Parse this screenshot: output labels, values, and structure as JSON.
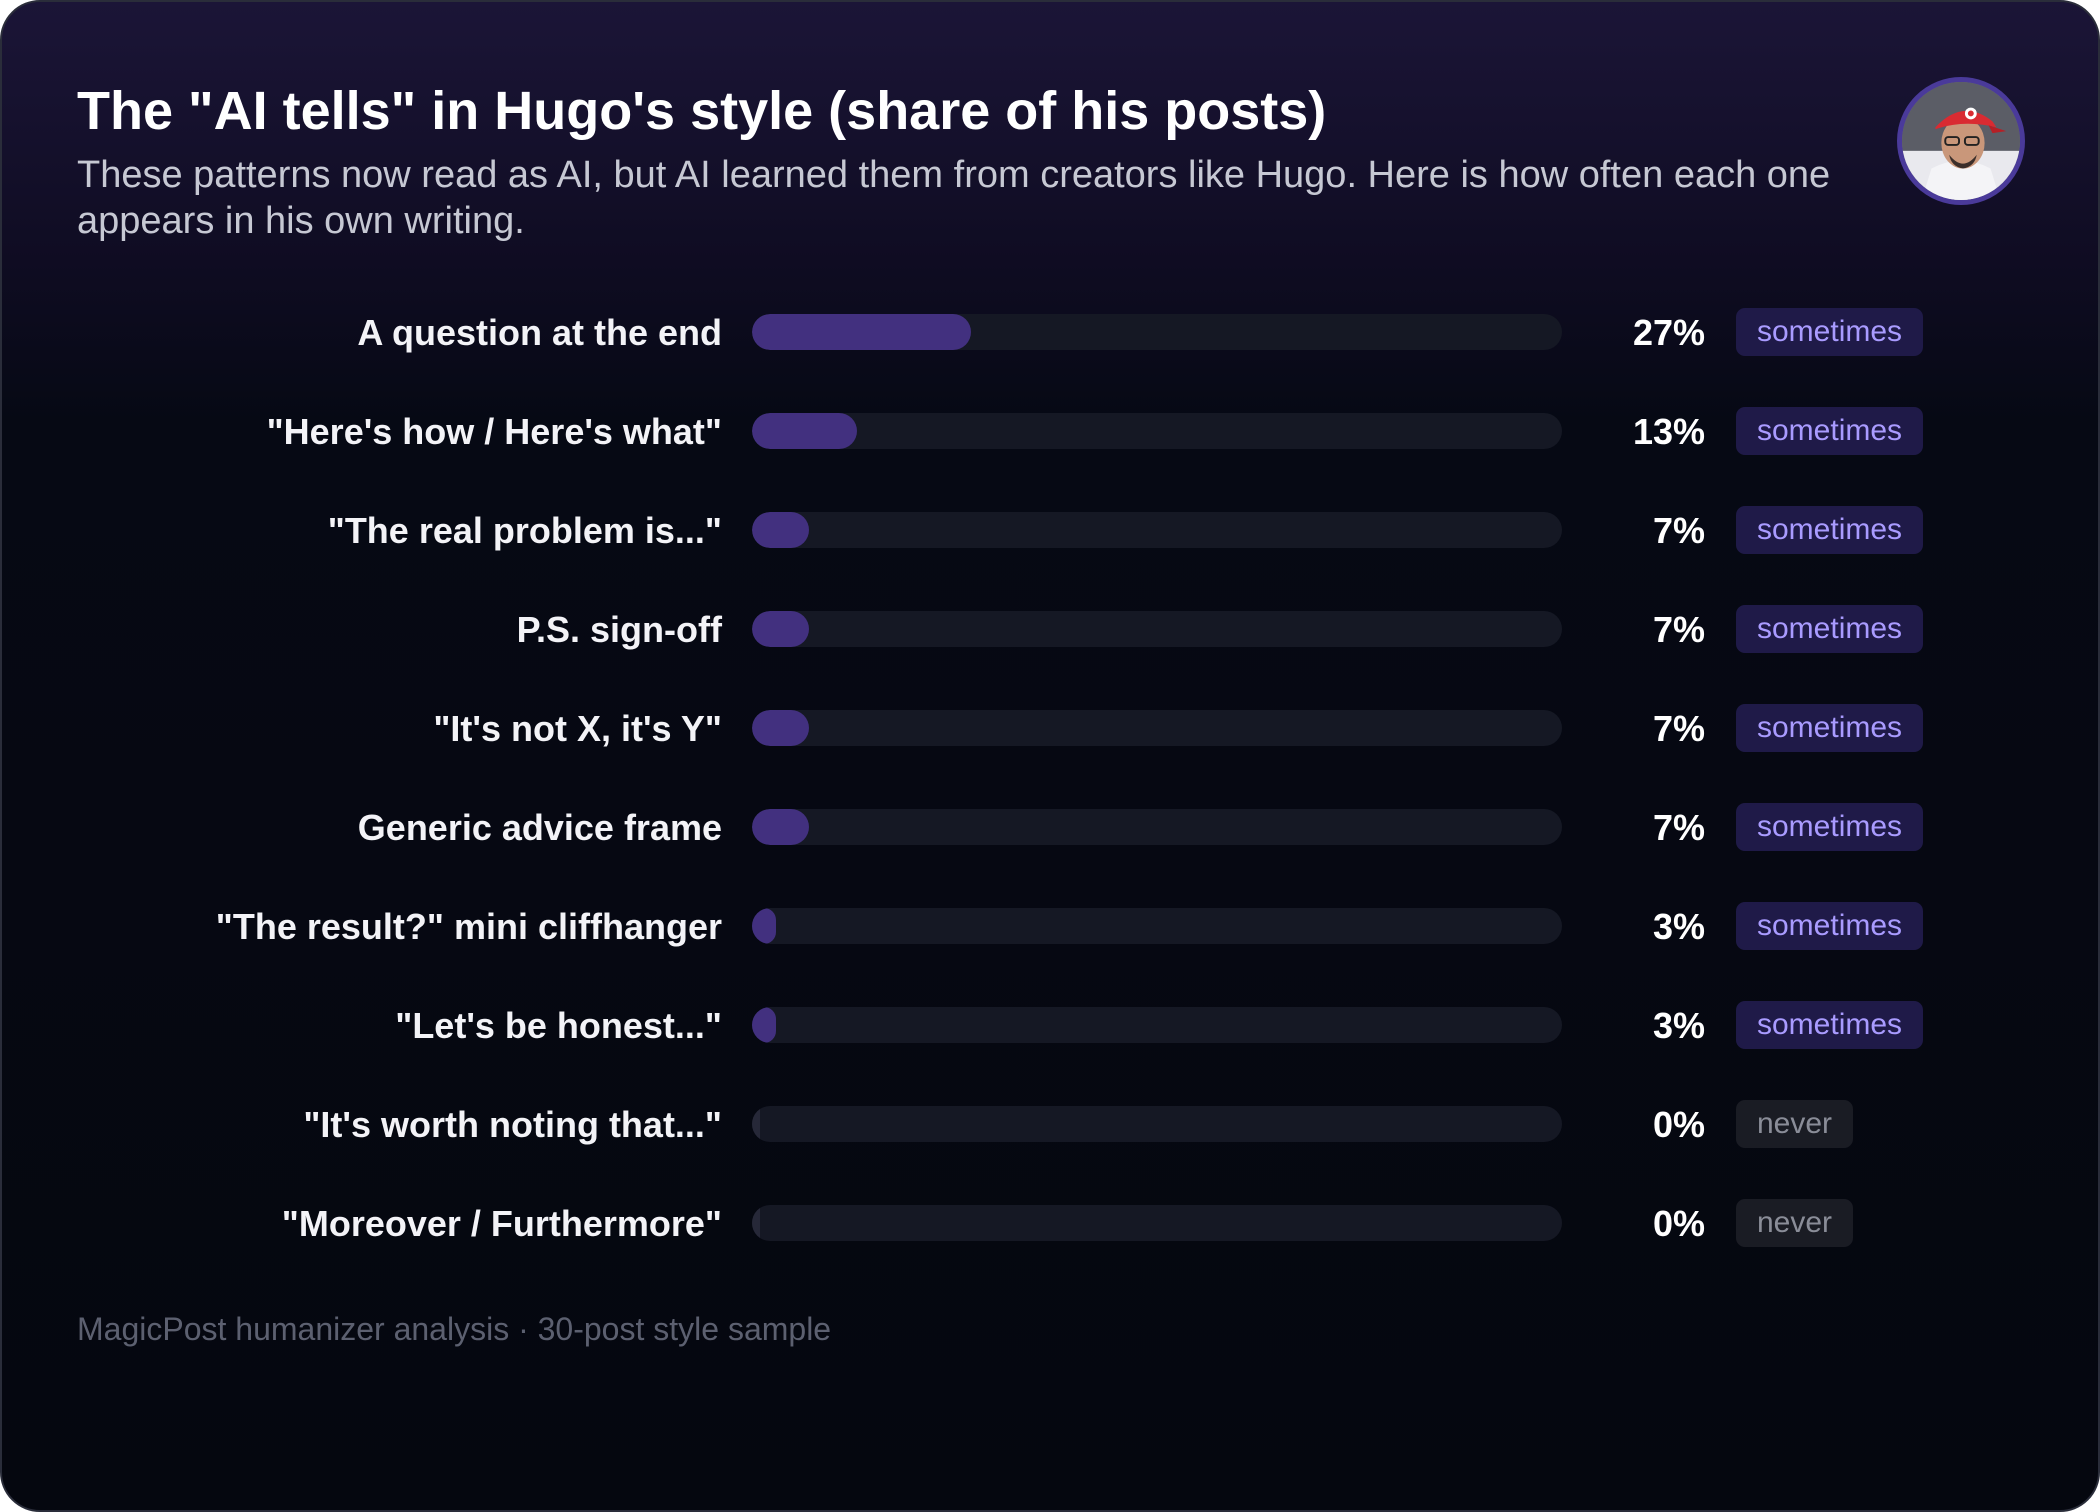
{
  "header": {
    "title": "The \"AI tells\" in Hugo's style (share of his posts)",
    "subtitle": "These patterns now read as AI, but AI learned them from creators like Hugo. Here is how often each one appears in his own writing."
  },
  "avatar": {
    "icon": "user-avatar-photo"
  },
  "colors": {
    "accent_bar": "#42307f",
    "track": "#151824",
    "badge_sometimes_bg": "#1f1a48",
    "badge_sometimes_text": "#a99bff",
    "badge_never_bg": "#1a1c24",
    "badge_never_text": "#8a8d98"
  },
  "chart_data": {
    "type": "bar",
    "orientation": "horizontal",
    "title": "The \"AI tells\" in Hugo's style (share of his posts)",
    "xlim": [
      0,
      100
    ],
    "categories": [
      "A question at the end",
      "\"Here's how / Here's what\"",
      "\"The real problem is...\"",
      "P.S. sign-off",
      "\"It's not X, it's Y\"",
      "Generic advice frame",
      "\"The result?\" mini cliffhanger",
      "\"Let's be honest...\"",
      "\"It's worth noting that...\"",
      "\"Moreover / Furthermore\""
    ],
    "values": [
      27,
      13,
      7,
      7,
      7,
      7,
      3,
      3,
      0,
      0
    ],
    "value_labels": [
      "27%",
      "13%",
      "7%",
      "7%",
      "7%",
      "7%",
      "3%",
      "3%",
      "0%",
      "0%"
    ],
    "frequency_tags": [
      "sometimes",
      "sometimes",
      "sometimes",
      "sometimes",
      "sometimes",
      "sometimes",
      "sometimes",
      "sometimes",
      "never",
      "never"
    ]
  },
  "footer": {
    "source": "MagicPost humanizer analysis · 30-post style sample"
  }
}
